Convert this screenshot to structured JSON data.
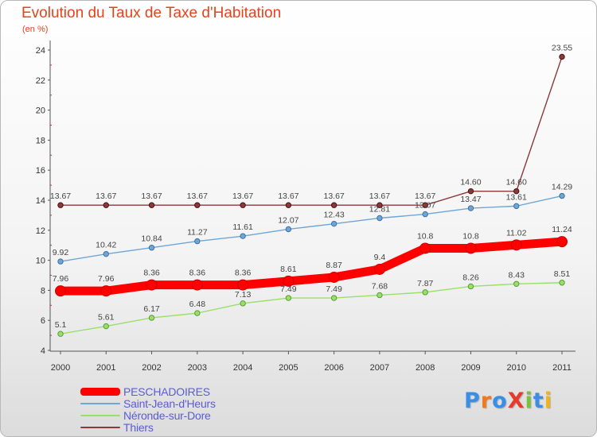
{
  "title": "Evolution du Taux de Taxe d'Habitation",
  "subtitle": "(en %)",
  "logo": "ProXiti",
  "chart_data": {
    "type": "line",
    "title": "Evolution du Taux de Taxe d'Habitation",
    "ylabel": "(en %)",
    "xlabel": "",
    "categories": [
      "2000",
      "2001",
      "2002",
      "2003",
      "2004",
      "2005",
      "2006",
      "2007",
      "2008",
      "2009",
      "2010",
      "2011"
    ],
    "ylim": [
      4,
      24
    ],
    "yticks": [
      4,
      6,
      8,
      10,
      12,
      14,
      16,
      18,
      20,
      22,
      24
    ],
    "grid": false,
    "legend_position": "bottom-left",
    "series": [
      {
        "name": "PESCHADOIRES",
        "color": "#ff0000",
        "label_format": "auto",
        "values": [
          7.96,
          7.96,
          8.36,
          8.36,
          8.36,
          8.61,
          8.87,
          9.4,
          10.8,
          10.8,
          11.02,
          11.24
        ]
      },
      {
        "name": "Saint-Jean-d'Heurs",
        "color": "#6ea6d8",
        "label_format": "auto",
        "values": [
          9.92,
          10.42,
          10.84,
          11.27,
          11.61,
          12.07,
          12.43,
          12.81,
          13.07,
          13.47,
          13.61,
          14.29
        ]
      },
      {
        "name": "Néronde-sur-Dore",
        "color": "#98e06a",
        "label_format": "auto",
        "values": [
          5.1,
          5.61,
          6.17,
          6.48,
          7.13,
          7.49,
          7.49,
          7.68,
          7.87,
          8.26,
          8.43,
          8.51
        ]
      },
      {
        "name": "Thiers",
        "color": "#8b3a3a",
        "label_format": "fixed2",
        "values": [
          13.67,
          13.67,
          13.67,
          13.67,
          13.67,
          13.67,
          13.67,
          13.67,
          13.67,
          14.6,
          14.6,
          23.55
        ]
      }
    ]
  }
}
